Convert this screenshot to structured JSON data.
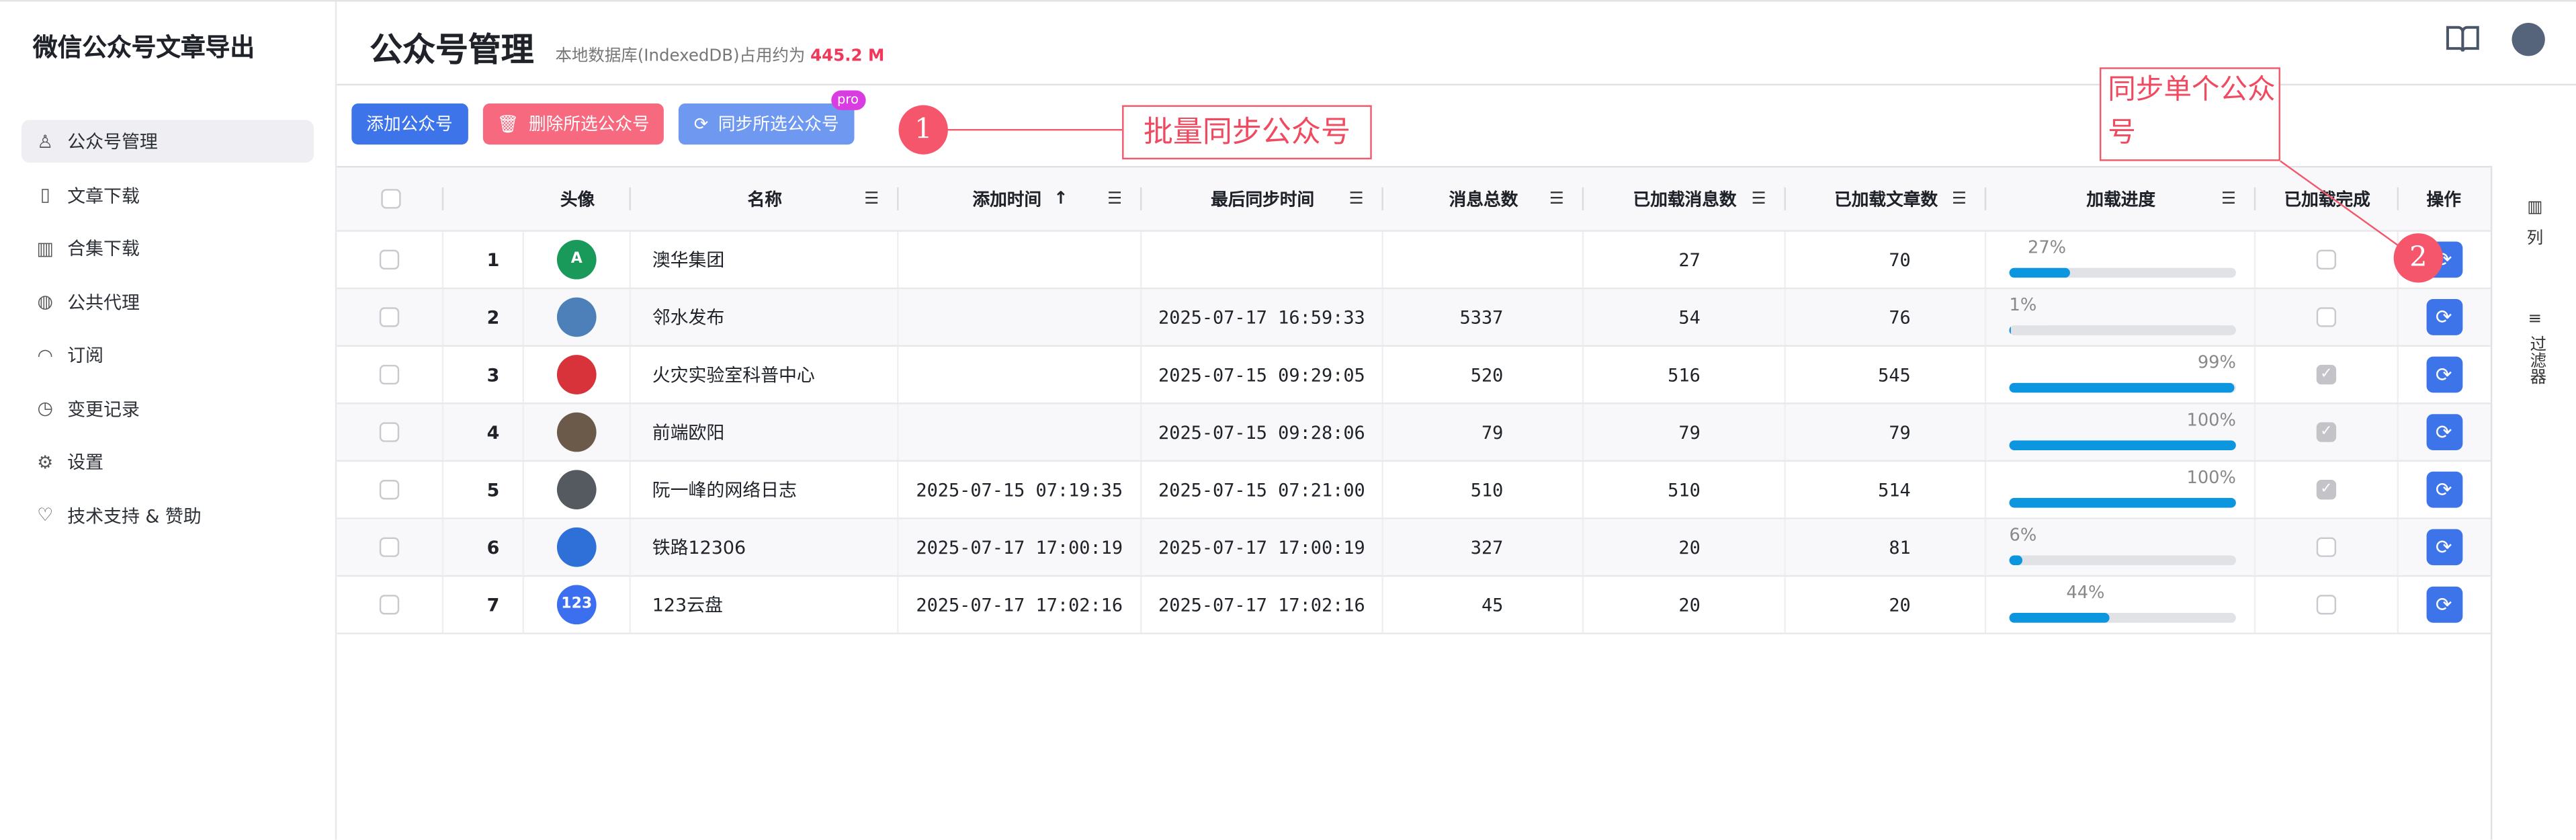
{
  "app_title": "微信公众号文章导出",
  "sidebar": {
    "items": [
      {
        "label": "公众号管理",
        "icon": "user-icon",
        "active": true
      },
      {
        "label": "文章下载",
        "icon": "file-icon"
      },
      {
        "label": "合集下载",
        "icon": "library-icon"
      },
      {
        "label": "公共代理",
        "icon": "globe-icon"
      },
      {
        "label": "订阅",
        "icon": "rss-icon"
      },
      {
        "label": "变更记录",
        "icon": "clock-icon"
      },
      {
        "label": "设置",
        "icon": "gear-icon"
      },
      {
        "label": "技术支持 & 赞助",
        "icon": "heart-icon"
      }
    ]
  },
  "header": {
    "title": "公众号管理",
    "subtitle": "本地数据库(IndexedDB)占用约为",
    "storage": "445.2 M"
  },
  "toolbar": {
    "add": "添加公众号",
    "delete": "删除所选公众号",
    "sync": "同步所选公众号",
    "pro_badge": "pro"
  },
  "annotations": {
    "one": "1",
    "one_text": "批量同步公众号",
    "two": "2",
    "two_text": "同步单个公众号"
  },
  "colors": {
    "primary": "#3d74ea",
    "danger": "#f6697e",
    "progress": "#0d96e0",
    "annotation": "#f5566b"
  },
  "table": {
    "columns": {
      "avatar": "头像",
      "name": "名称",
      "add_time": "添加时间",
      "sort_arrow": "↑",
      "sync_time": "最后同步时间",
      "total": "消息总数",
      "loaded_msg": "已加载消息数",
      "loaded_art": "已加载文章数",
      "progress": "加载进度",
      "done": "已加载完成",
      "ops": "操作"
    },
    "rows": [
      {
        "idx": "1",
        "name": "澳华集团",
        "add_time": "",
        "sync_time": "",
        "total": "",
        "loaded_msg": "27",
        "loaded_art": "70",
        "progress": 27,
        "progress_label": "27%",
        "done": false,
        "avatar_color": "#1a9a5a",
        "avatar_text": "A"
      },
      {
        "idx": "2",
        "name": "邻水发布",
        "add_time": "",
        "sync_time": "2025-07-17 16:59:33",
        "total": "5337",
        "loaded_msg": "54",
        "loaded_art": "76",
        "progress": 1,
        "progress_label": "1%",
        "done": false,
        "avatar_color": "#4d7fb8",
        "avatar_text": ""
      },
      {
        "idx": "3",
        "name": "火灾实验室科普中心",
        "add_time": "",
        "sync_time": "2025-07-15 09:29:05",
        "total": "520",
        "loaded_msg": "516",
        "loaded_art": "545",
        "progress": 99,
        "progress_label": "99%",
        "done": true,
        "avatar_color": "#d8333a",
        "avatar_text": ""
      },
      {
        "idx": "4",
        "name": "前端欧阳",
        "add_time": "",
        "sync_time": "2025-07-15 09:28:06",
        "total": "79",
        "loaded_msg": "79",
        "loaded_art": "79",
        "progress": 100,
        "progress_label": "100%",
        "done": true,
        "avatar_color": "#6b5a4a",
        "avatar_text": ""
      },
      {
        "idx": "5",
        "name": "阮一峰的网络日志",
        "add_time": "2025-07-15 07:19:35",
        "sync_time": "2025-07-15 07:21:00",
        "total": "510",
        "loaded_msg": "510",
        "loaded_art": "514",
        "progress": 100,
        "progress_label": "100%",
        "done": true,
        "avatar_color": "#555a60",
        "avatar_text": ""
      },
      {
        "idx": "6",
        "name": "铁路12306",
        "add_time": "2025-07-17 17:00:19",
        "sync_time": "2025-07-17 17:00:19",
        "total": "327",
        "loaded_msg": "20",
        "loaded_art": "81",
        "progress": 6,
        "progress_label": "6%",
        "done": false,
        "avatar_color": "#2f6fd8",
        "avatar_text": ""
      },
      {
        "idx": "7",
        "name": "123云盘",
        "add_time": "2025-07-17 17:02:16",
        "sync_time": "2025-07-17 17:02:16",
        "total": "45",
        "loaded_msg": "20",
        "loaded_art": "20",
        "progress": 44,
        "progress_label": "44%",
        "done": false,
        "avatar_color": "#3b6ff0",
        "avatar_text": "123"
      }
    ]
  },
  "right_panel": {
    "columns": "列",
    "filters": "过滤器"
  }
}
